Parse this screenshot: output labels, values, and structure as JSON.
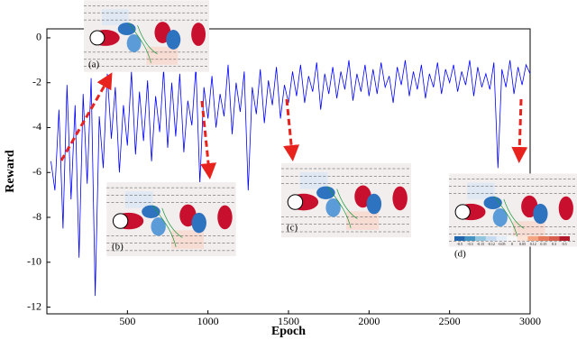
{
  "chart_data": {
    "type": "line",
    "x_label": "Epoch",
    "y_label": "Reward",
    "color": "#0000ff",
    "x": [
      25,
      50,
      75,
      100,
      125,
      150,
      175,
      200,
      225,
      250,
      275,
      300,
      325,
      350,
      375,
      400,
      425,
      450,
      475,
      500,
      525,
      550,
      575,
      600,
      625,
      650,
      675,
      700,
      725,
      750,
      775,
      800,
      825,
      850,
      875,
      900,
      925,
      950,
      975,
      1000,
      1025,
      1050,
      1075,
      1100,
      1125,
      1150,
      1175,
      1200,
      1225,
      1250,
      1275,
      1300,
      1325,
      1350,
      1375,
      1400,
      1425,
      1450,
      1475,
      1500,
      1525,
      1550,
      1575,
      1600,
      1625,
      1650,
      1675,
      1700,
      1725,
      1750,
      1775,
      1800,
      1825,
      1850,
      1875,
      1900,
      1925,
      1950,
      1975,
      2000,
      2025,
      2050,
      2075,
      2100,
      2125,
      2150,
      2175,
      2200,
      2225,
      2250,
      2275,
      2300,
      2325,
      2350,
      2375,
      2400,
      2425,
      2450,
      2475,
      2500,
      2525,
      2550,
      2575,
      2600,
      2625,
      2650,
      2675,
      2700,
      2725,
      2750,
      2775,
      2800,
      2825,
      2850,
      2875,
      2900,
      2925,
      2950,
      2975,
      3000
    ],
    "values": [
      -5.5,
      -6.8,
      -3.2,
      -8.5,
      -2.1,
      -7.2,
      -3.0,
      -9.8,
      -2.5,
      -6.5,
      -1.8,
      -11.5,
      -3.5,
      -5.8,
      -1.6,
      -4.5,
      -2.2,
      -6.0,
      -3.0,
      -4.8,
      -1.5,
      -5.2,
      -2.4,
      -4.6,
      -1.9,
      -5.5,
      -2.6,
      -4.2,
      -1.4,
      -4.9,
      -2.0,
      -4.4,
      -1.6,
      -5.1,
      -2.8,
      -3.9,
      -1.3,
      -6.5,
      -2.2,
      -3.6,
      -1.7,
      -4.0,
      -2.5,
      -3.5,
      -1.2,
      -4.3,
      -2.0,
      -3.3,
      -1.5,
      -6.8,
      -2.2,
      -3.4,
      -1.4,
      -3.8,
      -1.9,
      -3.0,
      -1.3,
      -3.6,
      -2.1,
      -2.9,
      -1.5,
      -2.6,
      -1.2,
      -2.9,
      -1.7,
      -2.4,
      -1.1,
      -3.2,
      -1.6,
      -2.5,
      -1.3,
      -2.7,
      -1.5,
      -2.3,
      -1.0,
      -2.8,
      -1.6,
      -2.4,
      -1.2,
      -2.6,
      -1.4,
      -2.5,
      -1.1,
      -2.2,
      -1.7,
      -2.9,
      -1.3,
      -2.1,
      -1.0,
      -2.6,
      -1.5,
      -2.3,
      -1.2,
      -2.7,
      -1.6,
      -2.2,
      -1.1,
      -2.5,
      -1.4,
      -2.0,
      -1.2,
      -2.4,
      -1.5,
      -2.1,
      -1.0,
      -2.6,
      -1.3,
      -2.2,
      -1.6,
      -2.3,
      -1.1,
      -5.8,
      -1.4,
      -2.2,
      -1.0,
      -2.5,
      -1.3,
      -2.1,
      -1.2,
      -1.6
    ],
    "xlim": [
      0,
      3000
    ],
    "ylim": [
      -12.3,
      0.4
    ],
    "xticks": [
      500,
      1000,
      1500,
      2000,
      2500,
      3000
    ],
    "yticks": [
      0,
      -2,
      -4,
      -6,
      -8,
      -10,
      -12
    ],
    "insets": [
      "(a)",
      "(b)",
      "(c)",
      "(d)"
    ],
    "colorbar_labels": [
      "-0.5",
      "-0.3",
      "-0.15",
      "-0.12",
      "-0.05",
      "0",
      "0.05",
      "0.12",
      "0.15",
      "0.3",
      "0.5"
    ]
  }
}
